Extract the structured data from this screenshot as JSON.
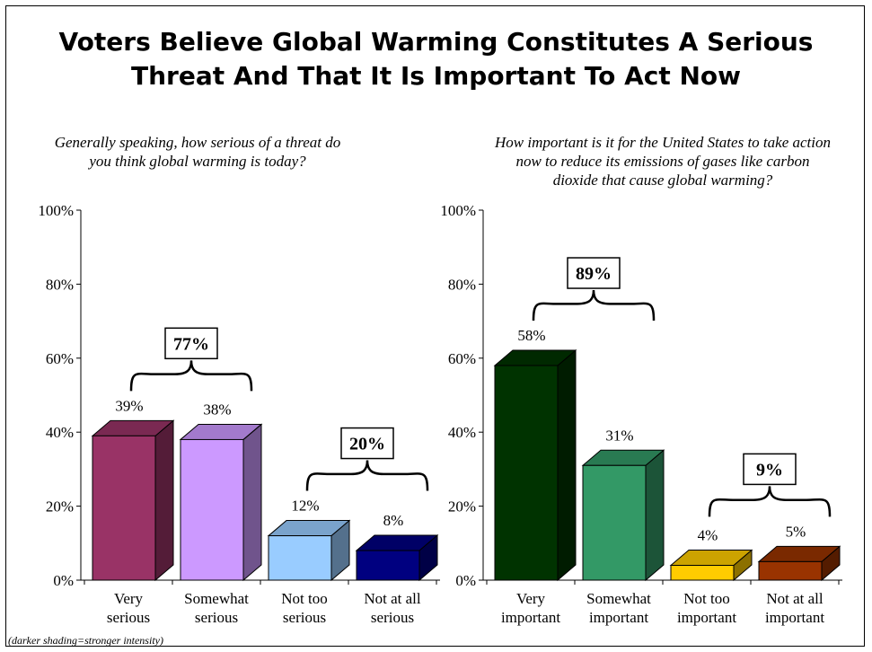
{
  "title": {
    "line1": "Voters Believe Global Warming Constitutes A Serious",
    "line2": "Threat And That It Is Important To Act Now"
  },
  "footnote": "(darker shading=stronger intensity)",
  "chart_data": [
    {
      "type": "bar",
      "question": "Generally speaking, how serious of a threat do you think global warming is today?",
      "categories": [
        [
          "Very",
          "serious"
        ],
        [
          "Somewhat",
          "serious"
        ],
        [
          "Not too",
          "serious"
        ],
        [
          "Not at all",
          "serious"
        ]
      ],
      "values": [
        39,
        38,
        12,
        8
      ],
      "value_labels": [
        "39%",
        "38%",
        "12%",
        "8%"
      ],
      "colors": [
        "#993366",
        "#cc99ff",
        "#99ccff",
        "#000080"
      ],
      "ylim": [
        0,
        100
      ],
      "yticks": [
        "0%",
        "20%",
        "40%",
        "60%",
        "80%",
        "100%"
      ],
      "groups": [
        {
          "label": "77%",
          "from": 0,
          "to": 1
        },
        {
          "label": "20%",
          "from": 2,
          "to": 3
        }
      ]
    },
    {
      "type": "bar",
      "question": "How important is it for the United States to take action now to reduce its emissions of gases like carbon dioxide that cause global warming?",
      "categories": [
        [
          "Very",
          "important"
        ],
        [
          "Somewhat",
          "important"
        ],
        [
          "Not too",
          "important"
        ],
        [
          "Not at all",
          "important"
        ]
      ],
      "values": [
        58,
        31,
        4,
        5
      ],
      "value_labels": [
        "58%",
        "31%",
        "4%",
        "5%"
      ],
      "colors": [
        "#003300",
        "#339966",
        "#ffcc00",
        "#993300"
      ],
      "ylim": [
        0,
        100
      ],
      "yticks": [
        "0%",
        "20%",
        "40%",
        "60%",
        "80%",
        "100%"
      ],
      "groups": [
        {
          "label": "89%",
          "from": 0,
          "to": 1
        },
        {
          "label": "9%",
          "from": 2,
          "to": 3
        }
      ]
    }
  ]
}
